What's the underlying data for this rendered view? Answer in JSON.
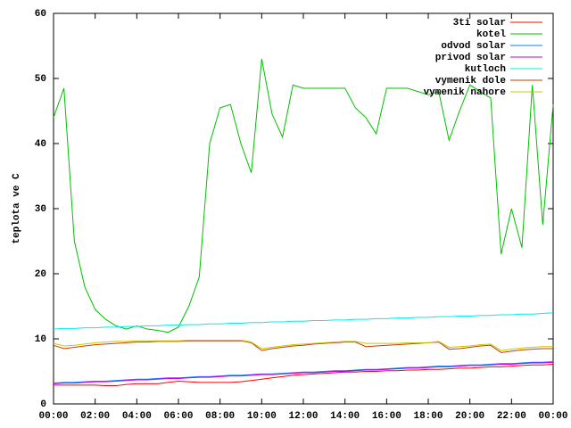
{
  "chart_data": {
    "type": "line",
    "ylabel": "teplota ve C",
    "x": [
      0,
      0.5,
      1,
      1.5,
      2,
      2.5,
      3,
      3.5,
      4,
      4.5,
      5,
      5.5,
      6,
      6.5,
      7,
      7.5,
      8,
      8.5,
      9,
      9.5,
      10,
      10.5,
      11,
      11.5,
      12,
      12.5,
      13,
      13.5,
      14,
      14.5,
      15,
      15.5,
      16,
      16.5,
      17,
      17.5,
      18,
      18.5,
      19,
      19.5,
      20,
      20.5,
      21,
      21.5,
      22,
      22.5,
      23,
      23.5,
      24
    ],
    "xlim": [
      0,
      24
    ],
    "xticks": [
      {
        "value": 0,
        "label": "00:00"
      },
      {
        "value": 2,
        "label": "02:00"
      },
      {
        "value": 4,
        "label": "04:00"
      },
      {
        "value": 6,
        "label": "06:00"
      },
      {
        "value": 8,
        "label": "08:00"
      },
      {
        "value": 10,
        "label": "10:00"
      },
      {
        "value": 12,
        "label": "12:00"
      },
      {
        "value": 14,
        "label": "14:00"
      },
      {
        "value": 16,
        "label": "16:00"
      },
      {
        "value": 18,
        "label": "18:00"
      },
      {
        "value": 20,
        "label": "20:00"
      },
      {
        "value": 22,
        "label": "22:00"
      },
      {
        "value": 24,
        "label": "00:00"
      }
    ],
    "ylim": [
      0,
      60
    ],
    "yticks": [
      0,
      10,
      20,
      30,
      40,
      50,
      60
    ],
    "legend": "top-right",
    "series": [
      {
        "name": "3ti solar",
        "color": "#ff0000",
        "values": [
          2.9,
          2.9,
          2.9,
          2.9,
          2.9,
          2.8,
          2.8,
          3.0,
          3.1,
          3.1,
          3.1,
          3.3,
          3.5,
          3.4,
          3.3,
          3.3,
          3.3,
          3.3,
          3.4,
          3.6,
          3.8,
          4.0,
          4.2,
          4.4,
          4.5,
          4.6,
          4.7,
          4.8,
          4.9,
          4.9,
          5.0,
          5.0,
          5.1,
          5.1,
          5.2,
          5.2,
          5.3,
          5.3,
          5.4,
          5.5,
          5.5,
          5.6,
          5.7,
          5.7,
          5.8,
          5.9,
          6.0,
          6.0,
          6.1
        ]
      },
      {
        "name": "kotel",
        "color": "#00c000",
        "values": [
          44,
          48.5,
          25,
          18,
          14.5,
          13,
          12,
          11.5,
          12,
          11.5,
          11.3,
          11,
          11.8,
          15,
          19.5,
          40,
          45.5,
          46,
          40,
          35.5,
          53,
          44.5,
          41,
          49,
          48.5,
          48.5,
          48.5,
          48.5,
          48.5,
          45.5,
          44,
          41.5,
          48.5,
          48.5,
          48.5,
          48,
          47.5,
          48,
          40.5,
          45,
          49,
          48,
          47,
          23,
          30,
          24,
          49,
          27.5,
          46
        ]
      },
      {
        "name": "odvod solar",
        "color": "#0080ff",
        "values": [
          3.2,
          3.3,
          3.3,
          3.4,
          3.5,
          3.5,
          3.6,
          3.7,
          3.8,
          3.8,
          3.9,
          4.0,
          4.0,
          4.1,
          4.2,
          4.2,
          4.3,
          4.4,
          4.4,
          4.5,
          4.6,
          4.6,
          4.7,
          4.8,
          4.9,
          4.9,
          5.0,
          5.1,
          5.1,
          5.2,
          5.3,
          5.3,
          5.4,
          5.5,
          5.6,
          5.6,
          5.7,
          5.8,
          5.8,
          5.9,
          6.0,
          6.0,
          6.1,
          6.2,
          6.2,
          6.3,
          6.4,
          6.4,
          6.5
        ]
      },
      {
        "name": "privod solar",
        "color": "#c000ff",
        "values": [
          3.1,
          3.2,
          3.2,
          3.3,
          3.4,
          3.4,
          3.5,
          3.6,
          3.7,
          3.7,
          3.8,
          3.9,
          3.9,
          4.0,
          4.1,
          4.1,
          4.2,
          4.3,
          4.3,
          4.4,
          4.5,
          4.5,
          4.6,
          4.7,
          4.8,
          4.8,
          4.9,
          5.0,
          5.0,
          5.1,
          5.2,
          5.2,
          5.3,
          5.4,
          5.5,
          5.5,
          5.6,
          5.7,
          5.7,
          5.8,
          5.9,
          5.9,
          6.0,
          6.1,
          6.1,
          6.2,
          6.3,
          6.3,
          6.4
        ]
      },
      {
        "name": "kutloch",
        "color": "#00eeee",
        "values": [
          11.5,
          11.6,
          11.6,
          11.7,
          11.7,
          11.8,
          11.8,
          11.9,
          11.9,
          12.0,
          12.0,
          12.1,
          12.1,
          12.2,
          12.2,
          12.3,
          12.3,
          12.4,
          12.4,
          12.5,
          12.5,
          12.6,
          12.6,
          12.7,
          12.7,
          12.8,
          12.8,
          12.9,
          12.9,
          13.0,
          13.0,
          13.1,
          13.1,
          13.2,
          13.2,
          13.3,
          13.3,
          13.4,
          13.4,
          13.5,
          13.5,
          13.6,
          13.6,
          13.7,
          13.7,
          13.8,
          13.8,
          13.9,
          14.0
        ]
      },
      {
        "name": "vymenik dole",
        "color": "#c04000",
        "values": [
          9.0,
          8.5,
          8.7,
          8.9,
          9.1,
          9.2,
          9.3,
          9.4,
          9.5,
          9.5,
          9.6,
          9.6,
          9.6,
          9.7,
          9.7,
          9.7,
          9.7,
          9.7,
          9.7,
          9.4,
          8.2,
          8.5,
          8.7,
          8.9,
          9.0,
          9.2,
          9.3,
          9.4,
          9.5,
          9.5,
          8.8,
          8.9,
          9.0,
          9.1,
          9.2,
          9.3,
          9.4,
          9.5,
          8.4,
          8.5,
          8.7,
          8.9,
          9.0,
          7.9,
          8.1,
          8.3,
          8.4,
          8.5,
          8.5
        ]
      },
      {
        "name": "vymenik nahore",
        "color": "#c8c800",
        "values": [
          9.3,
          8.9,
          9.0,
          9.2,
          9.4,
          9.5,
          9.6,
          9.6,
          9.7,
          9.7,
          9.7,
          9.7,
          9.7,
          9.8,
          9.8,
          9.8,
          9.8,
          9.8,
          9.8,
          9.5,
          8.5,
          8.7,
          8.9,
          9.1,
          9.2,
          9.3,
          9.4,
          9.5,
          9.6,
          9.6,
          9.3,
          9.3,
          9.3,
          9.3,
          9.4,
          9.4,
          9.4,
          9.6,
          8.7,
          8.8,
          8.9,
          9.1,
          9.2,
          8.2,
          8.4,
          8.6,
          8.7,
          8.8,
          8.8
        ]
      }
    ]
  }
}
